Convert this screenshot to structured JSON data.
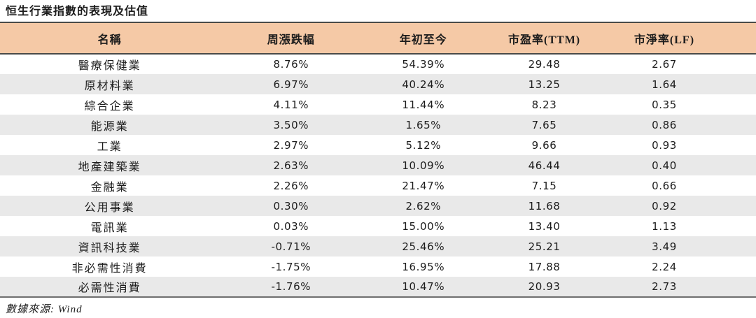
{
  "title": "恒生行業指數的表現及估值",
  "source_note": "數據來源: Wind",
  "colors": {
    "header_bg": "#F5C9A6",
    "row_alt_bg": "#E9E9E9",
    "rule_dark": "#4A4A48",
    "rule_bottom": "#6E6E6E",
    "text": "#1C1C1C"
  },
  "chart_data": {
    "type": "table",
    "title": "恒生行業指數的表現及估值",
    "columns": [
      "名稱",
      "周漲跌幅",
      "年初至今",
      "市盈率(TTM)",
      "市淨率(LF)"
    ],
    "rows": [
      [
        "醫療保健業",
        "8.76%",
        "54.39%",
        "29.48",
        "2.67"
      ],
      [
        "原材料業",
        "6.97%",
        "40.24%",
        "13.25",
        "1.64"
      ],
      [
        "綜合企業",
        "4.11%",
        "11.44%",
        "8.23",
        "0.35"
      ],
      [
        "能源業",
        "3.50%",
        "1.65%",
        "7.65",
        "0.86"
      ],
      [
        "工業",
        "2.97%",
        "5.12%",
        "9.66",
        "0.93"
      ],
      [
        "地產建築業",
        "2.63%",
        "10.09%",
        "46.44",
        "0.40"
      ],
      [
        "金融業",
        "2.26%",
        "21.47%",
        "7.15",
        "0.66"
      ],
      [
        "公用事業",
        "0.30%",
        "2.62%",
        "11.68",
        "0.92"
      ],
      [
        "電訊業",
        "0.03%",
        "15.00%",
        "13.40",
        "1.13"
      ],
      [
        "資訊科技業",
        "-0.71%",
        "25.46%",
        "25.21",
        "3.49"
      ],
      [
        "非必需性消費",
        "-1.75%",
        "16.95%",
        "17.88",
        "2.24"
      ],
      [
        "必需性消費",
        "-1.76%",
        "10.47%",
        "20.93",
        "2.73"
      ]
    ],
    "source": "Wind"
  }
}
